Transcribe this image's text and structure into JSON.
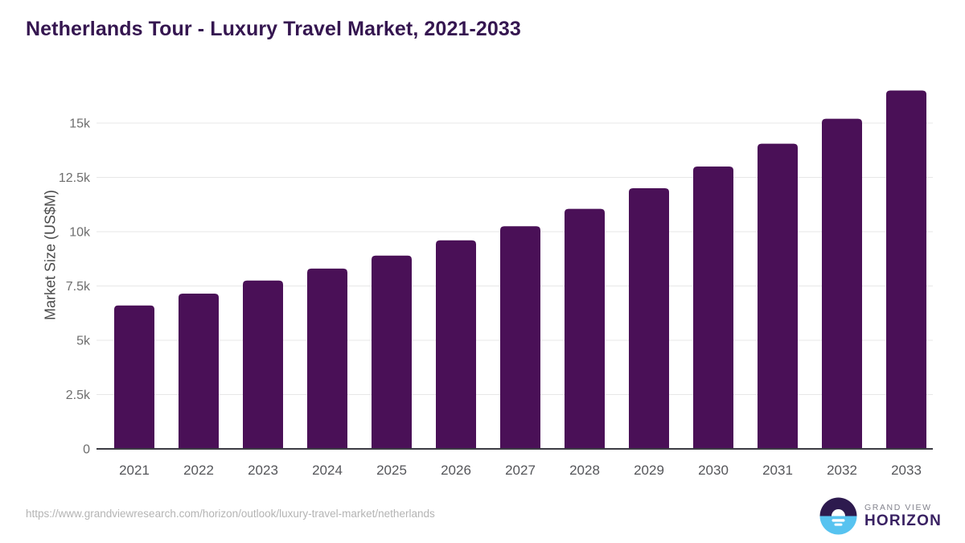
{
  "header": {
    "title": "Netherlands Tour - Luxury Travel Market, 2021-2033"
  },
  "chart_data": {
    "type": "bar",
    "title": "Netherlands Tour - Luxury Travel Market, 2021-2033",
    "categories": [
      "2021",
      "2022",
      "2023",
      "2024",
      "2025",
      "2026",
      "2027",
      "2028",
      "2029",
      "2030",
      "2031",
      "2032",
      "2033"
    ],
    "values": [
      6600,
      7150,
      7750,
      8300,
      8900,
      9600,
      10250,
      11050,
      12000,
      13000,
      14050,
      15200,
      16500
    ],
    "xlabel": "",
    "ylabel": "Market Size (US$M)",
    "ylim": [
      0,
      16800
    ],
    "yticks": [
      {
        "value": 0,
        "label": "0"
      },
      {
        "value": 2500,
        "label": "2.5k"
      },
      {
        "value": 5000,
        "label": "5k"
      },
      {
        "value": 7500,
        "label": "7.5k"
      },
      {
        "value": 10000,
        "label": "10k"
      },
      {
        "value": 12500,
        "label": "12.5k"
      },
      {
        "value": 15000,
        "label": "15k"
      }
    ],
    "grid": true,
    "legend": "none",
    "bar_color": "#4a1057"
  },
  "footer": {
    "url": "https://www.grandviewresearch.com/horizon/outlook/luxury-travel-market/netherlands",
    "logo": {
      "top_text": "GRAND VIEW",
      "bottom_text": "HORIZON"
    }
  },
  "colors": {
    "title": "#351650",
    "bar": "#4a1057",
    "grid": "#e7e7e7",
    "axis": "#3c3c44",
    "y_tick": "#6e6e6e",
    "x_tick": "#55565a",
    "ylabel": "#4b4b4b",
    "url": "#b4b4b4",
    "logo_dark": "#2d1a4e",
    "logo_blue": "#57c3f0",
    "logo_gray_text": "#84848e",
    "logo_purple_text": "#3a2263"
  }
}
